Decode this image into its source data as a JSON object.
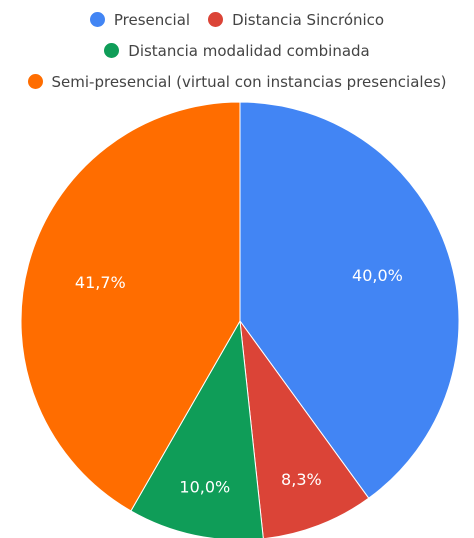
{
  "chart_data": {
    "type": "pie",
    "categories": [
      "Presencial",
      "Distancia Sincrónico",
      "Distancia modalidad combinada",
      "Semi-presencial (virtual con instancias presenciales)"
    ],
    "values": [
      40,
      8.3,
      10,
      41.7
    ],
    "value_labels": [
      "40,0%",
      "8,3%",
      "10,0%",
      "41,7%"
    ],
    "colors": [
      "#4285f4",
      "#db4437",
      "#0f9d58",
      "#ff6d00"
    ]
  }
}
